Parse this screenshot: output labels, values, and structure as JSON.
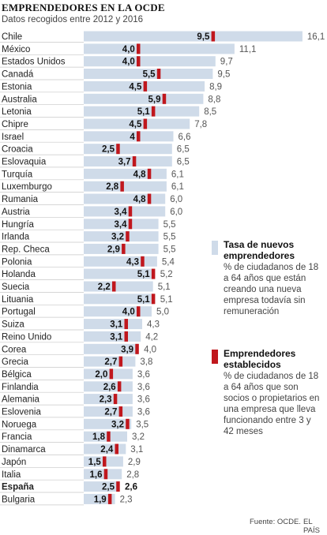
{
  "header": {
    "title": "EMPRENDEDORES EN LA OCDE",
    "subtitle": "Datos recogidos entre 2012 y 2016"
  },
  "legend": {
    "new": {
      "title": "Tasa de nuevos emprendedores",
      "description": "% de ciudadanos de 18 a 64 años que están creando una nueva empresa todavía sin remuneración",
      "color": "#cfdbe9"
    },
    "established": {
      "title": "Emprendedores establecidos",
      "description": "% de ciudadanos de 18 a 64 años que son socios o propietarios en una empresa que lleva funcionando entre 3 y 42 meses",
      "color": "#c0171d"
    }
  },
  "footer": {
    "source": "Fuente: OCDE.",
    "credit": "EL PAÍS"
  },
  "chart_data": {
    "type": "bar",
    "orientation": "horizontal",
    "highlight": "España",
    "grid": false,
    "categories": [
      "Chile",
      "México",
      "Estados Unidos",
      "Canadá",
      "Estonia",
      "Australia",
      "Letonia",
      "Chipre",
      "Israel",
      "Croacia",
      "Eslovaquia",
      "Turquía",
      "Luxemburgo",
      "Rumania",
      "Austria",
      "Hungría",
      "Irlanda",
      "Rep. Checa",
      "Polonia",
      "Holanda",
      "Suecia",
      "Lituania",
      "Portugal",
      "Suiza",
      "Reino Unido",
      "Corea",
      "Grecia",
      "Bélgica",
      "Finlandia",
      "Alemania",
      "Eslovenia",
      "Noruega",
      "Francia",
      "Dinamarca",
      "Japón",
      "Italia",
      "España",
      "Bulgaria"
    ],
    "series": [
      {
        "name": "Tasa de nuevos emprendedores",
        "labels": [
          "16,1",
          "11,1",
          "9,7",
          "9,5",
          "8,9",
          "8,8",
          "8,5",
          "7,8",
          "6,6",
          "6,5",
          "6,5",
          "6,1",
          "6,1",
          "6,0",
          "6,0",
          "5,5",
          "5,5",
          "5,5",
          "5,4",
          "5,2",
          "5,1",
          "5,1",
          "5,0",
          "4,3",
          "4,2",
          "4,0",
          "3,8",
          "3,6",
          "3,6",
          "3,6",
          "3,6",
          "3,5",
          "3,2",
          "3,1",
          "2,9",
          "2,8",
          "2,6",
          "2,3"
        ],
        "values": [
          16.1,
          11.1,
          9.7,
          9.5,
          8.9,
          8.8,
          8.5,
          7.8,
          6.6,
          6.5,
          6.5,
          6.1,
          6.1,
          6.0,
          6.0,
          5.5,
          5.5,
          5.5,
          5.4,
          5.2,
          5.1,
          5.1,
          5.0,
          4.3,
          4.2,
          4.0,
          3.8,
          3.6,
          3.6,
          3.6,
          3.6,
          3.5,
          3.2,
          3.1,
          2.9,
          2.8,
          2.6,
          2.3
        ]
      },
      {
        "name": "Emprendedores establecidos",
        "labels": [
          "9,5",
          "4,0",
          "4,0",
          "5,5",
          "4,5",
          "5,9",
          "5,1",
          "4,5",
          "4",
          "2,5",
          "3,7",
          "4,8",
          "2,8",
          "4,8",
          "3,4",
          "3,4",
          "3,2",
          "2,9",
          "4,3",
          "5,1",
          "2,2",
          "5,1",
          "4,0",
          "3,1",
          "3,1",
          "3,9",
          "2,7",
          "2,0",
          "2,6",
          "2,3",
          "2,7",
          "3,2",
          "1,8",
          "2,4",
          "1,5",
          "1,6",
          "2,5",
          "1,9"
        ],
        "values": [
          9.5,
          4.0,
          4.0,
          5.5,
          4.5,
          5.9,
          5.1,
          4.5,
          4,
          2.5,
          3.7,
          4.8,
          2.8,
          4.8,
          3.4,
          3.4,
          3.2,
          2.9,
          4.3,
          5.1,
          2.2,
          5.1,
          4.0,
          3.1,
          3.1,
          3.9,
          2.7,
          2.0,
          2.6,
          2.3,
          2.7,
          3.2,
          1.8,
          2.4,
          1.5,
          1.6,
          2.5,
          1.9
        ]
      }
    ]
  }
}
